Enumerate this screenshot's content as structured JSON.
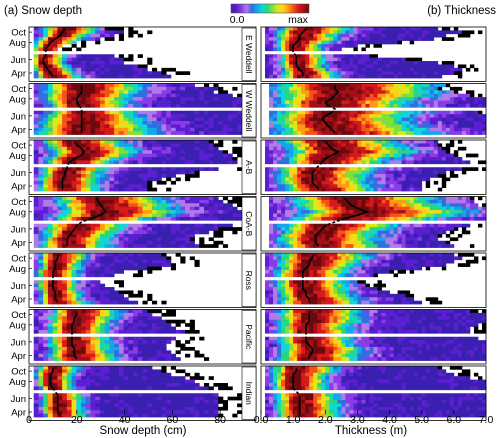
{
  "chart_data": {
    "type": "heatmap",
    "colorbar": {
      "min_label": "0.0",
      "max_label": "max",
      "colors": [
        "#3a1fb0",
        "#5a1fd0",
        "#8a3be6",
        "#b07be8",
        "#2f6fe0",
        "#13a7ea",
        "#10d6d6",
        "#2bd57a",
        "#7fe03a",
        "#d8ea1a",
        "#ffd21a",
        "#ff9a12",
        "#f2531a",
        "#d7191c",
        "#a40e16",
        "#6a0a0e"
      ],
      "no_data_color": "#000000"
    },
    "panels": [
      {
        "title": "(a) Snow depth",
        "xlabel": "Snow depth (cm)",
        "xlim": [
          0,
          95
        ],
        "xticks": [
          0,
          20,
          40,
          60,
          80
        ],
        "xtick_labels": [
          "0",
          "20",
          "40",
          "60",
          "80"
        ]
      },
      {
        "title": "(b) Thickness",
        "xlabel": "Thickness (m)",
        "xlim": [
          0,
          7
        ],
        "xticks": [
          0,
          1,
          2,
          3,
          4,
          5,
          6,
          7
        ],
        "xtick_labels": [
          "0.0",
          "1.0",
          "2.0",
          "3.0",
          "4.0",
          "5.0",
          "6.0",
          "7.0"
        ]
      }
    ],
    "month_ticks": [
      "Oct",
      "Aug",
      "Jun",
      "Apr"
    ],
    "months_per_year": 8,
    "regions": [
      {
        "name": "E Weddell",
        "snow": {
          "median": [
            15,
            14,
            13,
            11,
            9,
            8,
            7,
            7,
            7,
            6,
            6,
            7,
            8,
            9,
            10,
            12
          ],
          "width": [
            8,
            8,
            7,
            7,
            6,
            5,
            5,
            5,
            5,
            5,
            5,
            5,
            6,
            6,
            7,
            7
          ],
          "lower": 3,
          "extent": [
            32,
            40,
            36,
            30,
            20,
            14,
            12,
            14,
            36,
            40,
            40,
            45,
            50,
            56,
            60,
            62
          ]
        },
        "thick": {
          "median": [
            1.4,
            1.3,
            1.2,
            1.2,
            1.1,
            1.0,
            1.0,
            1.0,
            1.1,
            1.1,
            1.1,
            1.1,
            1.2,
            1.3,
            1.3,
            1.4
          ],
          "width": [
            0.8,
            0.8,
            0.7,
            0.7,
            0.6,
            0.5,
            0.5,
            0.5,
            0.5,
            0.5,
            0.5,
            0.5,
            0.5,
            0.6,
            0.6,
            0.6
          ],
          "lower": 0.2,
          "extent": [
            5.5,
            6.2,
            5.8,
            5.4,
            4.2,
            3.0,
            2.5,
            2.2,
            3.4,
            4.5,
            5.5,
            6.0,
            6.3,
            6.0,
            5.6,
            5.0
          ]
        }
      },
      {
        "name": "W Weddell",
        "snow": {
          "median": [
            22,
            22,
            22,
            21,
            20,
            20,
            21,
            22,
            22,
            22,
            22,
            22,
            22,
            22,
            22,
            22
          ],
          "width": [
            15,
            15,
            14,
            14,
            13,
            12,
            12,
            12,
            13,
            14,
            15,
            16,
            16,
            17,
            18,
            18
          ],
          "lower": 4,
          "extent": [
            70,
            80,
            78,
            85,
            90,
            92,
            93,
            95,
            95,
            95,
            95,
            95,
            95,
            95,
            95,
            95
          ]
        },
        "thick": {
          "median": [
            2.3,
            2.3,
            2.4,
            2.3,
            2.2,
            2.0,
            2.1,
            2.3,
            2.2,
            2.0,
            1.9,
            2.0,
            2.1,
            2.2,
            2.3,
            2.3
          ],
          "width": [
            1.8,
            1.8,
            1.8,
            1.7,
            1.6,
            1.5,
            1.5,
            1.6,
            1.6,
            1.5,
            1.5,
            1.5,
            1.6,
            1.6,
            1.7,
            1.8
          ],
          "lower": 0.4,
          "extent": [
            5.8,
            5.5,
            6.0,
            6.5,
            7.0,
            7.0,
            7.0,
            7.0,
            6.8,
            7.0,
            7.0,
            7.0,
            7.0,
            7.0,
            7.0,
            7.0
          ]
        }
      },
      {
        "name": "A-B",
        "snow": {
          "median": [
            19,
            20,
            22,
            23,
            22,
            19,
            17,
            16,
            16,
            15,
            15,
            14,
            14,
            14,
            14,
            14
          ],
          "width": [
            12,
            12,
            13,
            13,
            12,
            11,
            10,
            10,
            10,
            9,
            9,
            9,
            9,
            9,
            9,
            9
          ],
          "lower": 3,
          "extent": [
            75,
            78,
            80,
            82,
            85,
            85,
            88,
            88,
            80,
            70,
            62,
            55,
            50,
            50,
            50,
            50
          ]
        },
        "thick": {
          "median": [
            2.0,
            2.1,
            2.2,
            2.4,
            2.2,
            2.0,
            1.9,
            1.8,
            1.7,
            1.6,
            1.6,
            1.6,
            1.6,
            1.7,
            1.8,
            1.9
          ],
          "width": [
            1.3,
            1.3,
            1.4,
            1.4,
            1.3,
            1.2,
            1.1,
            1.1,
            1.1,
            1.0,
            1.0,
            1.0,
            1.0,
            1.0,
            1.0,
            1.0
          ],
          "lower": 0.3,
          "extent": [
            5.5,
            5.5,
            5.6,
            5.8,
            6.0,
            6.2,
            6.5,
            6.5,
            6.2,
            5.8,
            5.5,
            5.2,
            5.0,
            5.0,
            5.0,
            5.0
          ]
        }
      },
      {
        "name": "CoA-B",
        "snow": {
          "median": [
            28,
            29,
            30,
            31,
            32,
            30,
            26,
            22,
            20,
            19,
            18,
            17,
            16,
            16,
            16,
            17
          ],
          "width": [
            16,
            16,
            17,
            17,
            18,
            17,
            15,
            13,
            12,
            11,
            11,
            10,
            10,
            10,
            10,
            10
          ],
          "lower": 4,
          "extent": [
            80,
            82,
            85,
            88,
            90,
            92,
            92,
            90,
            85,
            80,
            75,
            70,
            68,
            70,
            72,
            75
          ]
        },
        "thick": {
          "median": [
            2.6,
            2.7,
            2.8,
            3.0,
            3.3,
            3.0,
            2.6,
            2.3,
            2.0,
            1.9,
            1.8,
            1.7,
            1.7,
            1.7,
            1.8,
            1.9
          ],
          "width": [
            1.6,
            1.6,
            1.7,
            1.8,
            1.9,
            1.8,
            1.6,
            1.4,
            1.3,
            1.2,
            1.1,
            1.1,
            1.1,
            1.1,
            1.1,
            1.2
          ],
          "lower": 0.4,
          "extent": [
            6.5,
            6.6,
            6.8,
            7.0,
            7.0,
            7.0,
            7.0,
            6.8,
            6.5,
            6.0,
            5.8,
            5.5,
            5.5,
            5.8,
            6.0,
            6.2
          ]
        }
      },
      {
        "name": "Ross",
        "snow": {
          "median": [
            12,
            12,
            11,
            11,
            11,
            10,
            10,
            10,
            10,
            10,
            10,
            11,
            11,
            11,
            12,
            12
          ],
          "width": [
            7,
            7,
            7,
            6,
            6,
            6,
            6,
            6,
            6,
            6,
            6,
            6,
            6,
            6,
            7,
            7
          ],
          "lower": 2,
          "extent": [
            55,
            58,
            60,
            60,
            50,
            40,
            35,
            30,
            30,
            32,
            35,
            38,
            40,
            42,
            45,
            45
          ]
        },
        "thick": {
          "median": [
            1.6,
            1.6,
            1.5,
            1.5,
            1.4,
            1.3,
            1.3,
            1.3,
            1.3,
            1.3,
            1.3,
            1.4,
            1.4,
            1.5,
            1.5,
            1.6
          ],
          "width": [
            1.0,
            1.0,
            0.9,
            0.9,
            0.8,
            0.8,
            0.8,
            0.8,
            0.8,
            0.8,
            0.8,
            0.8,
            0.8,
            0.9,
            0.9,
            1.0
          ],
          "lower": 0.3,
          "extent": [
            6.0,
            6.2,
            6.0,
            5.8,
            5.0,
            4.0,
            3.5,
            3.0,
            3.0,
            3.2,
            3.6,
            4.0,
            4.5,
            4.8,
            5.0,
            5.2
          ]
        }
      },
      {
        "name": "Pacific",
        "snow": {
          "median": [
            20,
            20,
            19,
            19,
            18,
            18,
            18,
            18,
            18,
            18,
            18,
            19,
            19,
            19,
            20,
            20
          ],
          "width": [
            10,
            10,
            10,
            9,
            9,
            9,
            9,
            9,
            9,
            9,
            9,
            9,
            9,
            10,
            10,
            10
          ],
          "lower": 3,
          "extent": [
            50,
            52,
            55,
            58,
            60,
            62,
            65,
            65,
            62,
            60,
            58,
            58,
            60,
            62,
            64,
            66
          ]
        },
        "thick": {
          "median": [
            1.5,
            1.5,
            1.5,
            1.5,
            1.4,
            1.4,
            1.4,
            1.4,
            1.4,
            1.4,
            1.5,
            1.6,
            1.6,
            1.5,
            1.5,
            1.5
          ],
          "width": [
            0.9,
            0.9,
            0.9,
            0.9,
            0.8,
            0.8,
            0.8,
            0.8,
            0.8,
            0.8,
            0.8,
            0.9,
            0.9,
            0.9,
            0.9,
            0.9
          ],
          "lower": 0.3,
          "extent": [
            6.5,
            7.0,
            7.0,
            7.0,
            6.8,
            6.5,
            6.5,
            6.5,
            6.8,
            7.0,
            7.0,
            7.0,
            7.0,
            7.0,
            7.0,
            7.0
          ]
        }
      },
      {
        "name": "Indian",
        "snow": {
          "median": [
            10,
            10,
            9,
            9,
            9,
            9,
            10,
            11,
            12,
            12,
            12,
            12,
            12,
            12,
            13,
            13
          ],
          "width": [
            6,
            6,
            6,
            5,
            5,
            5,
            5,
            6,
            6,
            6,
            6,
            6,
            6,
            6,
            6,
            6
          ],
          "lower": 2,
          "extent": [
            52,
            55,
            60,
            66,
            70,
            72,
            75,
            78,
            80,
            80,
            80,
            80,
            80,
            80,
            80,
            80
          ]
        },
        "thick": {
          "median": [
            1.1,
            1.1,
            1.0,
            1.0,
            1.0,
            1.0,
            1.0,
            1.1,
            1.2,
            1.2,
            1.2,
            1.2,
            1.2,
            1.2,
            1.2,
            1.2
          ],
          "width": [
            0.7,
            0.7,
            0.6,
            0.6,
            0.6,
            0.6,
            0.6,
            0.6,
            0.7,
            0.7,
            0.7,
            0.7,
            0.7,
            0.7,
            0.7,
            0.7
          ],
          "lower": 0.2,
          "extent": [
            5.5,
            5.8,
            6.0,
            6.5,
            7.0,
            7.0,
            7.0,
            7.0,
            7.0,
            7.0,
            7.0,
            7.0,
            7.0,
            7.0,
            7.0,
            7.0
          ]
        }
      }
    ]
  }
}
